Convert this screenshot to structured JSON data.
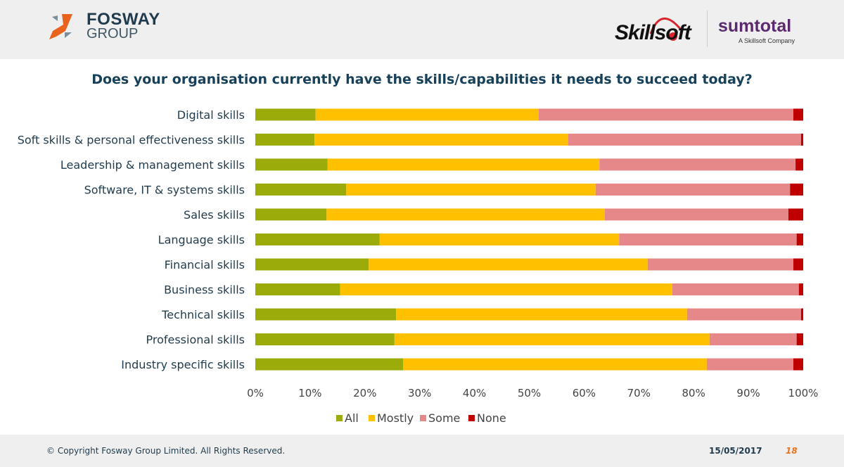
{
  "header": {
    "fosway_logo": "FOSWAY GROUP",
    "fosway_name": "FOSWAY",
    "fosway_group": "GROUP",
    "skillsoft_logo": "Skillsoft",
    "sumtotal_logo": "sumtotal",
    "sumtotal_sub": "A Skillsoft Company"
  },
  "chart_data": {
    "type": "bar",
    "orientation": "horizontal",
    "stacked": true,
    "title": "Does your organisation currently have the skills/capabilities it needs to succeed today?",
    "categories": [
      "Digital skills",
      "Soft skills & personal effectiveness skills",
      "Leadership & management skills",
      "Software, IT & systems skills",
      "Sales skills",
      "Language skills",
      "Financial skills",
      "Business skills",
      "Technical skills",
      "Professional skills",
      "Industry specific skills"
    ],
    "series": [
      {
        "name": "All",
        "color": "#9aab0a",
        "values": [
          11.0,
          10.8,
          13.2,
          16.6,
          13.0,
          22.7,
          20.7,
          15.5,
          25.7,
          25.4,
          27.0
        ]
      },
      {
        "name": "Mostly",
        "color": "#ffc000",
        "values": [
          40.7,
          46.3,
          49.6,
          45.5,
          50.8,
          43.7,
          50.9,
          60.6,
          53.1,
          57.5,
          55.4
        ]
      },
      {
        "name": "Some",
        "color": "#e6888a",
        "values": [
          46.5,
          42.5,
          35.8,
          35.5,
          33.5,
          32.4,
          26.6,
          23.1,
          20.8,
          15.9,
          15.8
        ]
      },
      {
        "name": "None",
        "color": "#c00000",
        "values": [
          1.8,
          0.4,
          1.4,
          2.4,
          2.7,
          1.2,
          1.8,
          0.8,
          0.4,
          1.2,
          1.8
        ]
      }
    ],
    "xlim": [
      0,
      100
    ],
    "x_ticks": [
      "0%",
      "10%",
      "20%",
      "30%",
      "40%",
      "50%",
      "60%",
      "70%",
      "80%",
      "90%",
      "100%"
    ],
    "grid": false,
    "legend_position": "bottom"
  },
  "footer": {
    "copyright": "© Copyright Fosway Group Limited. All Rights Reserved.",
    "date": "15/05/2017",
    "page": "18"
  }
}
